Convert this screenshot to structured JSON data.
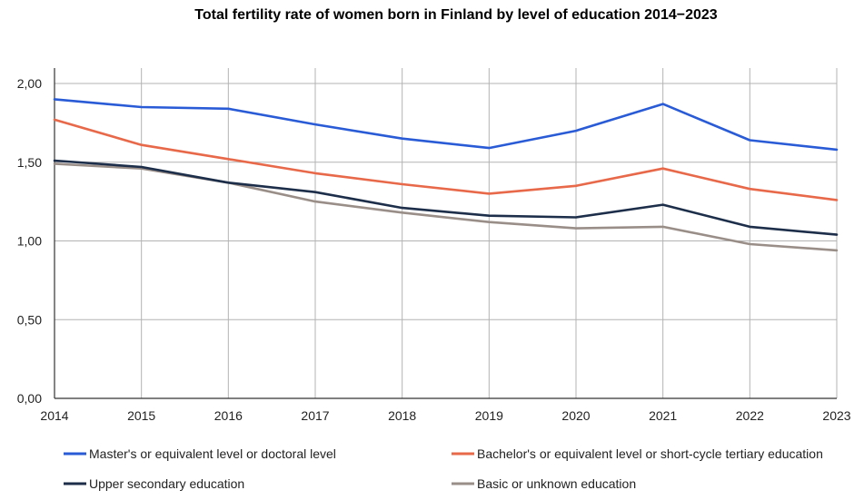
{
  "chart_data": {
    "type": "line",
    "title": "Total fertility rate of women born in Finland by level of education 2014−2023",
    "xlabel": "",
    "ylabel": "",
    "x": [
      "2014",
      "2015",
      "2016",
      "2017",
      "2018",
      "2019",
      "2020",
      "2021",
      "2022",
      "2023"
    ],
    "ylim": [
      0,
      2
    ],
    "yticks": [
      "0,00",
      "0,50",
      "1,00",
      "1,50",
      "2,00"
    ],
    "grid": true,
    "legend_position": "bottom",
    "series": [
      {
        "name": "Master's or equivalent level or doctoral level",
        "color": "#2a5bd7",
        "values": [
          1.9,
          1.85,
          1.84,
          1.74,
          1.65,
          1.59,
          1.7,
          1.87,
          1.64,
          1.58
        ]
      },
      {
        "name": "Bachelor's or equivalent level or short-cycle tertiary education",
        "color": "#e8684a",
        "values": [
          1.77,
          1.61,
          1.52,
          1.43,
          1.36,
          1.3,
          1.35,
          1.46,
          1.33,
          1.26
        ]
      },
      {
        "name": "Upper secondary education",
        "color": "#1c2e4a",
        "values": [
          1.51,
          1.47,
          1.37,
          1.31,
          1.21,
          1.16,
          1.15,
          1.23,
          1.09,
          1.04
        ]
      },
      {
        "name": "Basic or unknown education",
        "color": "#9a8e88",
        "values": [
          1.49,
          1.46,
          1.37,
          1.25,
          1.18,
          1.12,
          1.08,
          1.09,
          0.98,
          0.94
        ]
      }
    ]
  }
}
